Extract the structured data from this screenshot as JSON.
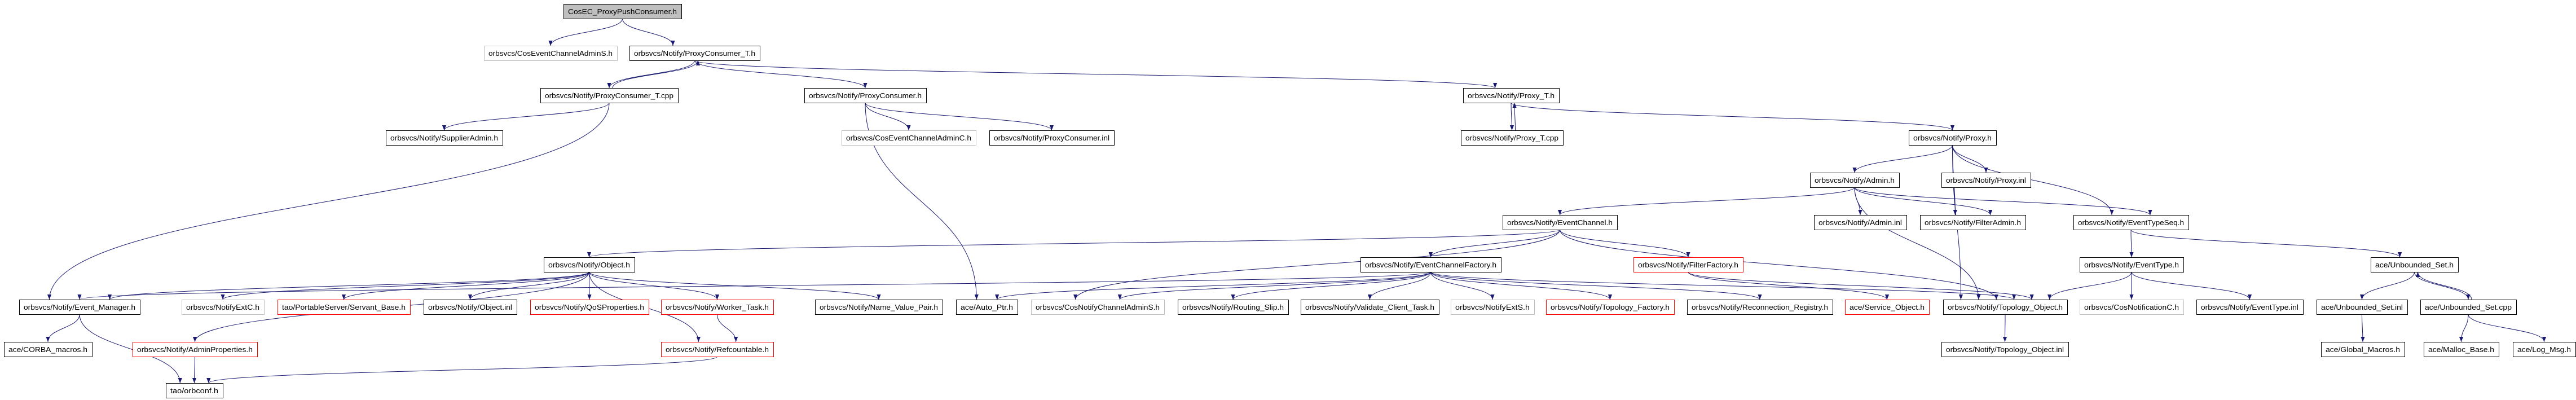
{
  "colors": {
    "edge": "#191970",
    "root_fill": "#bfbfbf",
    "border_normal": "#000000",
    "border_truncated": "#ff0000",
    "border_undocumented": "#bfbfbf"
  },
  "graph": {
    "root": "CosEC_ProxyPushConsumer.h",
    "nodes": [
      {
        "id": "n0",
        "label": "CosEC_ProxyPushConsumer.h",
        "kind": "root"
      },
      {
        "id": "n1",
        "label": "orbsvcs/CosEventChannelAdminS.h",
        "kind": "undocumented"
      },
      {
        "id": "n2",
        "label": "orbsvcs/Notify/ProxyConsumer_T.h",
        "kind": "normal"
      },
      {
        "id": "n3",
        "label": "orbsvcs/Notify/ProxyConsumer_T.cpp",
        "kind": "normal"
      },
      {
        "id": "n4",
        "label": "orbsvcs/Notify/ProxyConsumer.h",
        "kind": "normal"
      },
      {
        "id": "n5",
        "label": "orbsvcs/Notify/Proxy_T.h",
        "kind": "normal"
      },
      {
        "id": "n6",
        "label": "orbsvcs/Notify/SupplierAdmin.h",
        "kind": "normal"
      },
      {
        "id": "n7",
        "label": "orbsvcs/CosEventChannelAdminC.h",
        "kind": "undocumented"
      },
      {
        "id": "n8",
        "label": "orbsvcs/Notify/ProxyConsumer.inl",
        "kind": "normal"
      },
      {
        "id": "n9",
        "label": "orbsvcs/Notify/Proxy_T.cpp",
        "kind": "normal"
      },
      {
        "id": "n10",
        "label": "orbsvcs/Notify/Proxy.h",
        "kind": "normal"
      },
      {
        "id": "n11",
        "label": "orbsvcs/Notify/Admin.h",
        "kind": "normal"
      },
      {
        "id": "n12",
        "label": "orbsvcs/Notify/Proxy.inl",
        "kind": "normal"
      },
      {
        "id": "n13",
        "label": "orbsvcs/Notify/EventChannel.h",
        "kind": "normal"
      },
      {
        "id": "n14",
        "label": "orbsvcs/Notify/Admin.inl",
        "kind": "normal"
      },
      {
        "id": "n15",
        "label": "orbsvcs/Notify/FilterAdmin.h",
        "kind": "normal"
      },
      {
        "id": "n16",
        "label": "orbsvcs/Notify/EventTypeSeq.h",
        "kind": "normal"
      },
      {
        "id": "n17",
        "label": "orbsvcs/Notify/Object.h",
        "kind": "normal"
      },
      {
        "id": "n18",
        "label": "orbsvcs/Notify/EventChannelFactory.h",
        "kind": "normal"
      },
      {
        "id": "n19",
        "label": "orbsvcs/Notify/FilterFactory.h",
        "kind": "truncated"
      },
      {
        "id": "n20",
        "label": "orbsvcs/Notify/EventType.h",
        "kind": "normal"
      },
      {
        "id": "n21",
        "label": "ace/Unbounded_Set.h",
        "kind": "normal"
      },
      {
        "id": "n22",
        "label": "orbsvcs/Notify/Event_Manager.h",
        "kind": "normal"
      },
      {
        "id": "n23",
        "label": "orbsvcs/NotifyExtC.h",
        "kind": "undocumented"
      },
      {
        "id": "n24",
        "label": "tao/PortableServer/Servant_Base.h",
        "kind": "truncated"
      },
      {
        "id": "n25",
        "label": "orbsvcs/Notify/Object.inl",
        "kind": "normal"
      },
      {
        "id": "n26",
        "label": "orbsvcs/Notify/QoSProperties.h",
        "kind": "truncated"
      },
      {
        "id": "n27",
        "label": "orbsvcs/Notify/Worker_Task.h",
        "kind": "truncated"
      },
      {
        "id": "n28",
        "label": "orbsvcs/Notify/Name_Value_Pair.h",
        "kind": "normal"
      },
      {
        "id": "n29",
        "label": "ace/Auto_Ptr.h",
        "kind": "normal"
      },
      {
        "id": "n30",
        "label": "orbsvcs/CosNotifyChannelAdminS.h",
        "kind": "undocumented"
      },
      {
        "id": "n31",
        "label": "orbsvcs/Notify/Routing_Slip.h",
        "kind": "normal"
      },
      {
        "id": "n32",
        "label": "orbsvcs/Notify/Validate_Client_Task.h",
        "kind": "normal"
      },
      {
        "id": "n33",
        "label": "orbsvcs/NotifyExtS.h",
        "kind": "undocumented"
      },
      {
        "id": "n34",
        "label": "orbsvcs/Notify/Topology_Factory.h",
        "kind": "truncated"
      },
      {
        "id": "n35",
        "label": "orbsvcs/Notify/Reconnection_Registry.h",
        "kind": "normal"
      },
      {
        "id": "n36",
        "label": "ace/Service_Object.h",
        "kind": "truncated"
      },
      {
        "id": "n37",
        "label": "orbsvcs/Notify/Topology_Object.h",
        "kind": "normal"
      },
      {
        "id": "n38",
        "label": "orbsvcs/CosNotificationC.h",
        "kind": "undocumented"
      },
      {
        "id": "n39",
        "label": "orbsvcs/Notify/EventType.inl",
        "kind": "normal"
      },
      {
        "id": "n40",
        "label": "ace/Unbounded_Set.inl",
        "kind": "normal"
      },
      {
        "id": "n41",
        "label": "ace/Unbounded_Set.cpp",
        "kind": "normal"
      },
      {
        "id": "n42",
        "label": "ace/CORBA_macros.h",
        "kind": "normal"
      },
      {
        "id": "n43",
        "label": "orbsvcs/Notify/AdminProperties.h",
        "kind": "truncated"
      },
      {
        "id": "n44",
        "label": "orbsvcs/Notify/Refcountable.h",
        "kind": "truncated"
      },
      {
        "id": "n45",
        "label": "orbsvcs/Notify/Topology_Object.inl",
        "kind": "normal"
      },
      {
        "id": "n46",
        "label": "ace/Global_Macros.h",
        "kind": "normal"
      },
      {
        "id": "n47",
        "label": "ace/Malloc_Base.h",
        "kind": "normal"
      },
      {
        "id": "n48",
        "label": "ace/Log_Msg.h",
        "kind": "normal"
      },
      {
        "id": "n49",
        "label": "tao/orbconf.h",
        "kind": "normal"
      }
    ],
    "edges": [
      [
        "n0",
        "n1"
      ],
      [
        "n0",
        "n2"
      ],
      [
        "n2",
        "n3"
      ],
      [
        "n2",
        "n4"
      ],
      [
        "n2",
        "n5"
      ],
      [
        "n3",
        "n2"
      ],
      [
        "n3",
        "n6"
      ],
      [
        "n3",
        "n22"
      ],
      [
        "n4",
        "n7"
      ],
      [
        "n4",
        "n8"
      ],
      [
        "n4",
        "n29"
      ],
      [
        "n5",
        "n9"
      ],
      [
        "n5",
        "n10"
      ],
      [
        "n9",
        "n5"
      ],
      [
        "n10",
        "n11"
      ],
      [
        "n10",
        "n12"
      ],
      [
        "n10",
        "n15"
      ],
      [
        "n10",
        "n37"
      ],
      [
        "n10",
        "n16"
      ],
      [
        "n11",
        "n13"
      ],
      [
        "n11",
        "n14"
      ],
      [
        "n11",
        "n15"
      ],
      [
        "n11",
        "n16"
      ],
      [
        "n11",
        "n37"
      ],
      [
        "n13",
        "n17"
      ],
      [
        "n13",
        "n18"
      ],
      [
        "n13",
        "n19"
      ],
      [
        "n13",
        "n37"
      ],
      [
        "n13",
        "n30"
      ],
      [
        "n18",
        "n22"
      ],
      [
        "n18",
        "n29"
      ],
      [
        "n18",
        "n30"
      ],
      [
        "n18",
        "n31"
      ],
      [
        "n18",
        "n32"
      ],
      [
        "n18",
        "n33"
      ],
      [
        "n18",
        "n34"
      ],
      [
        "n18",
        "n35"
      ],
      [
        "n18",
        "n37"
      ],
      [
        "n19",
        "n36"
      ],
      [
        "n19",
        "n37"
      ],
      [
        "n16",
        "n20"
      ],
      [
        "n16",
        "n21"
      ],
      [
        "n20",
        "n37"
      ],
      [
        "n20",
        "n38"
      ],
      [
        "n20",
        "n39"
      ],
      [
        "n21",
        "n40"
      ],
      [
        "n21",
        "n41"
      ],
      [
        "n41",
        "n21"
      ],
      [
        "n41",
        "n47"
      ],
      [
        "n41",
        "n48"
      ],
      [
        "n40",
        "n46"
      ],
      [
        "n37",
        "n45"
      ],
      [
        "n17",
        "n22"
      ],
      [
        "n17",
        "n23"
      ],
      [
        "n17",
        "n24"
      ],
      [
        "n17",
        "n25"
      ],
      [
        "n17",
        "n26"
      ],
      [
        "n17",
        "n27"
      ],
      [
        "n17",
        "n44"
      ],
      [
        "n17",
        "n28"
      ],
      [
        "n17",
        "n43"
      ],
      [
        "n27",
        "n44"
      ],
      [
        "n22",
        "n42"
      ],
      [
        "n22",
        "n49"
      ],
      [
        "n43",
        "n49"
      ],
      [
        "n44",
        "n49"
      ]
    ]
  }
}
